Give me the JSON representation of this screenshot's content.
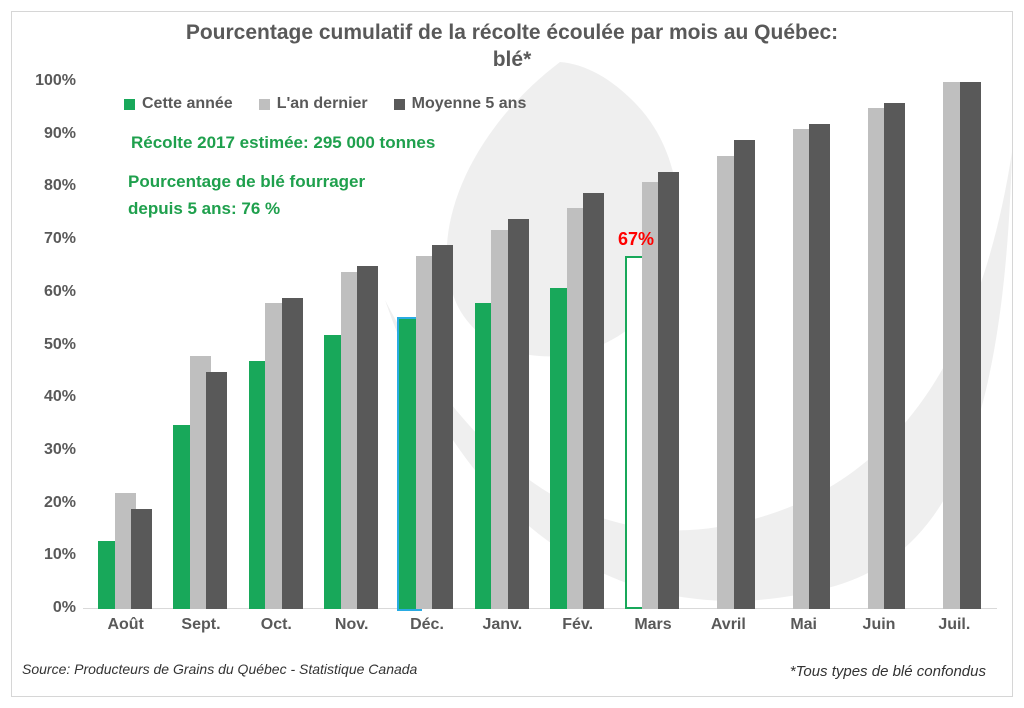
{
  "window": {
    "title_line1": "Pourcentage cumulatif de la récolte écoulée par mois au Québec:",
    "title_line2": "blé*"
  },
  "legend": {
    "items": [
      {
        "label": "Cette année"
      },
      {
        "label": "L'an dernier"
      },
      {
        "label": "Moyenne 5 ans"
      }
    ]
  },
  "annotations": {
    "harvest_note": "Récolte 2017 estimée: 295 000 tonnes",
    "forage_note_line1": "Pourcentage de blé fourrager",
    "forage_note_line2": "depuis 5 ans: 76 %",
    "mars_bar_label": "67%"
  },
  "footer": {
    "source": "Source: Producteurs de Grains du Québec - Statistique Canada",
    "footnote": "*Tous types de blé confondus"
  },
  "colors": {
    "series_green": "#18a85a",
    "series_light_gray": "#bfbfbf",
    "series_dark_gray": "#595959",
    "annotation_green": "#1fa04d",
    "annotation_red": "#ff0000",
    "selection_blue": "#29abe2",
    "axis_line": "#d9d9d9",
    "text_gray": "#595959",
    "watermark_gray": "#eeeeee"
  },
  "chart_data": {
    "type": "bar",
    "title": "Pourcentage cumulatif de la récolte écoulée par mois au Québec: blé*",
    "categories": [
      "Août",
      "Sept.",
      "Oct.",
      "Nov.",
      "Déc.",
      "Janv.",
      "Fév.",
      "Mars",
      "Avril",
      "Mai",
      "Juin",
      "Juil."
    ],
    "series": [
      {
        "name": "Cette année",
        "color": "#18a85a",
        "values": [
          13,
          35,
          47,
          52,
          55,
          58,
          61,
          67,
          null,
          null,
          null,
          null
        ]
      },
      {
        "name": "L'an dernier",
        "color": "#bfbfbf",
        "values": [
          22,
          48,
          58,
          64,
          67,
          72,
          76,
          81,
          86,
          91,
          95,
          100
        ]
      },
      {
        "name": "Moyenne 5 ans",
        "color": "#595959",
        "values": [
          19,
          45,
          59,
          65,
          69,
          74,
          79,
          83,
          89,
          92,
          96,
          100
        ]
      }
    ],
    "ylim": [
      0,
      100
    ],
    "yticks": [
      "0%",
      "10%",
      "20%",
      "30%",
      "40%",
      "50%",
      "60%",
      "70%",
      "80%",
      "90%",
      "100%"
    ],
    "selected_bar_category": "Déc.",
    "hatched_bar_category": "Mars",
    "value_annotations": [
      {
        "text": "67%",
        "series": "Cette année",
        "category": "Mars",
        "color": "#ff0000"
      }
    ],
    "legend_position": "top-left",
    "grid": false
  }
}
